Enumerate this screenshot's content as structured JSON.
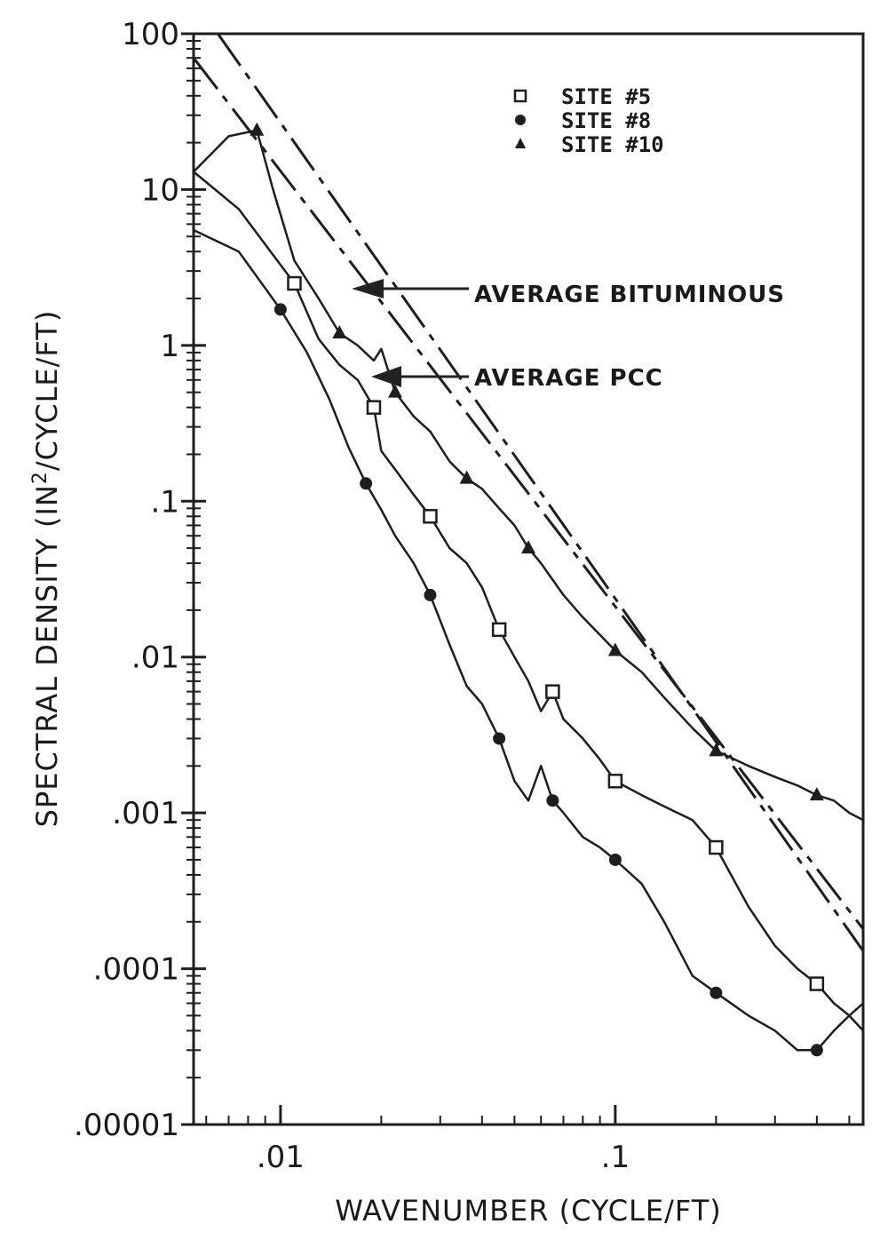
{
  "chart_data": {
    "type": "line",
    "xscale": "log",
    "yscale": "log",
    "xlim": [
      0.0055,
      0.55
    ],
    "ylim": [
      1e-05,
      100
    ],
    "xlabel": "WAVENUMBER (CYCLE/FT)",
    "ylabel_parts": {
      "pre": "SPECTRAL DENSITY (IN",
      "sup": "2",
      "post": "/CYCLE/FT)"
    },
    "xticks": [
      {
        "value": 0.01,
        "label": ".01"
      },
      {
        "value": 0.1,
        "label": ".1"
      }
    ],
    "yticks": [
      {
        "value": 100,
        "label": "100"
      },
      {
        "value": 10,
        "label": "10"
      },
      {
        "value": 1,
        "label": "1"
      },
      {
        "value": 0.1,
        "label": ".1"
      },
      {
        "value": 0.01,
        "label": ".01"
      },
      {
        "value": 0.001,
        "label": ".001"
      },
      {
        "value": 0.0001,
        "label": ".0001"
      },
      {
        "value": 1e-05,
        "label": ".00001"
      }
    ],
    "legend_position": "top-right",
    "series": [
      {
        "name": "SITE #5",
        "marker": "square",
        "x": [
          0.0055,
          0.0075,
          0.011,
          0.013,
          0.015,
          0.017,
          0.019,
          0.02,
          0.022,
          0.025,
          0.028,
          0.032,
          0.036,
          0.04,
          0.045,
          0.05,
          0.055,
          0.06,
          0.065,
          0.07,
          0.08,
          0.09,
          0.1,
          0.12,
          0.14,
          0.17,
          0.2,
          0.25,
          0.3,
          0.35,
          0.4,
          0.45,
          0.5,
          0.55
        ],
        "values": [
          13,
          7.5,
          2.5,
          1.1,
          0.75,
          0.6,
          0.4,
          0.21,
          0.16,
          0.11,
          0.08,
          0.05,
          0.04,
          0.028,
          0.015,
          0.01,
          0.007,
          0.0045,
          0.006,
          0.004,
          0.003,
          0.0022,
          0.0016,
          0.0013,
          0.0011,
          0.0009,
          0.0006,
          0.00025,
          0.00014,
          0.0001,
          8e-05,
          6e-05,
          5e-05,
          6e-05
        ]
      },
      {
        "name": "SITE #8",
        "marker": "circle",
        "x": [
          0.0055,
          0.0075,
          0.01,
          0.012,
          0.014,
          0.016,
          0.018,
          0.02,
          0.022,
          0.025,
          0.028,
          0.032,
          0.036,
          0.04,
          0.045,
          0.05,
          0.055,
          0.06,
          0.065,
          0.07,
          0.08,
          0.09,
          0.1,
          0.12,
          0.14,
          0.17,
          0.2,
          0.25,
          0.3,
          0.35,
          0.4,
          0.45,
          0.5,
          0.55
        ],
        "values": [
          5.5,
          4,
          1.7,
          0.9,
          0.45,
          0.22,
          0.13,
          0.088,
          0.06,
          0.04,
          0.025,
          0.012,
          0.0065,
          0.005,
          0.003,
          0.0016,
          0.0012,
          0.002,
          0.0012,
          0.001,
          0.0007,
          0.0006,
          0.0005,
          0.00035,
          0.0002,
          9e-05,
          7e-05,
          5e-05,
          4e-05,
          3e-05,
          3e-05,
          4e-05,
          5e-05,
          4e-05
        ]
      },
      {
        "name": "SITE #10",
        "marker": "triangle",
        "x": [
          0.0055,
          0.007,
          0.0085,
          0.0095,
          0.011,
          0.013,
          0.015,
          0.017,
          0.019,
          0.02,
          0.022,
          0.025,
          0.028,
          0.032,
          0.036,
          0.04,
          0.045,
          0.05,
          0.055,
          0.06,
          0.07,
          0.08,
          0.1,
          0.12,
          0.14,
          0.17,
          0.2,
          0.25,
          0.3,
          0.35,
          0.4,
          0.45,
          0.5,
          0.55
        ],
        "values": [
          13,
          22,
          24,
          10,
          3.5,
          2,
          1.2,
          1,
          0.8,
          0.95,
          0.5,
          0.35,
          0.28,
          0.18,
          0.14,
          0.12,
          0.09,
          0.07,
          0.05,
          0.04,
          0.025,
          0.018,
          0.011,
          0.008,
          0.0055,
          0.0035,
          0.0025,
          0.002,
          0.0017,
          0.0015,
          0.0013,
          0.0012,
          0.001,
          0.0009
        ]
      },
      {
        "name": "AVERAGE BITUMINOUS",
        "style": "dashed",
        "x": [
          0.0065,
          0.55
        ],
        "values": [
          100,
          0.00013
        ]
      },
      {
        "name": "AVERAGE PCC",
        "style": "dashed",
        "x": [
          0.0055,
          0.55
        ],
        "values": [
          70,
          0.00018
        ]
      }
    ],
    "annotations": [
      {
        "text": "AVERAGE BITUMINOUS"
      },
      {
        "text": "AVERAGE PCC"
      }
    ]
  }
}
